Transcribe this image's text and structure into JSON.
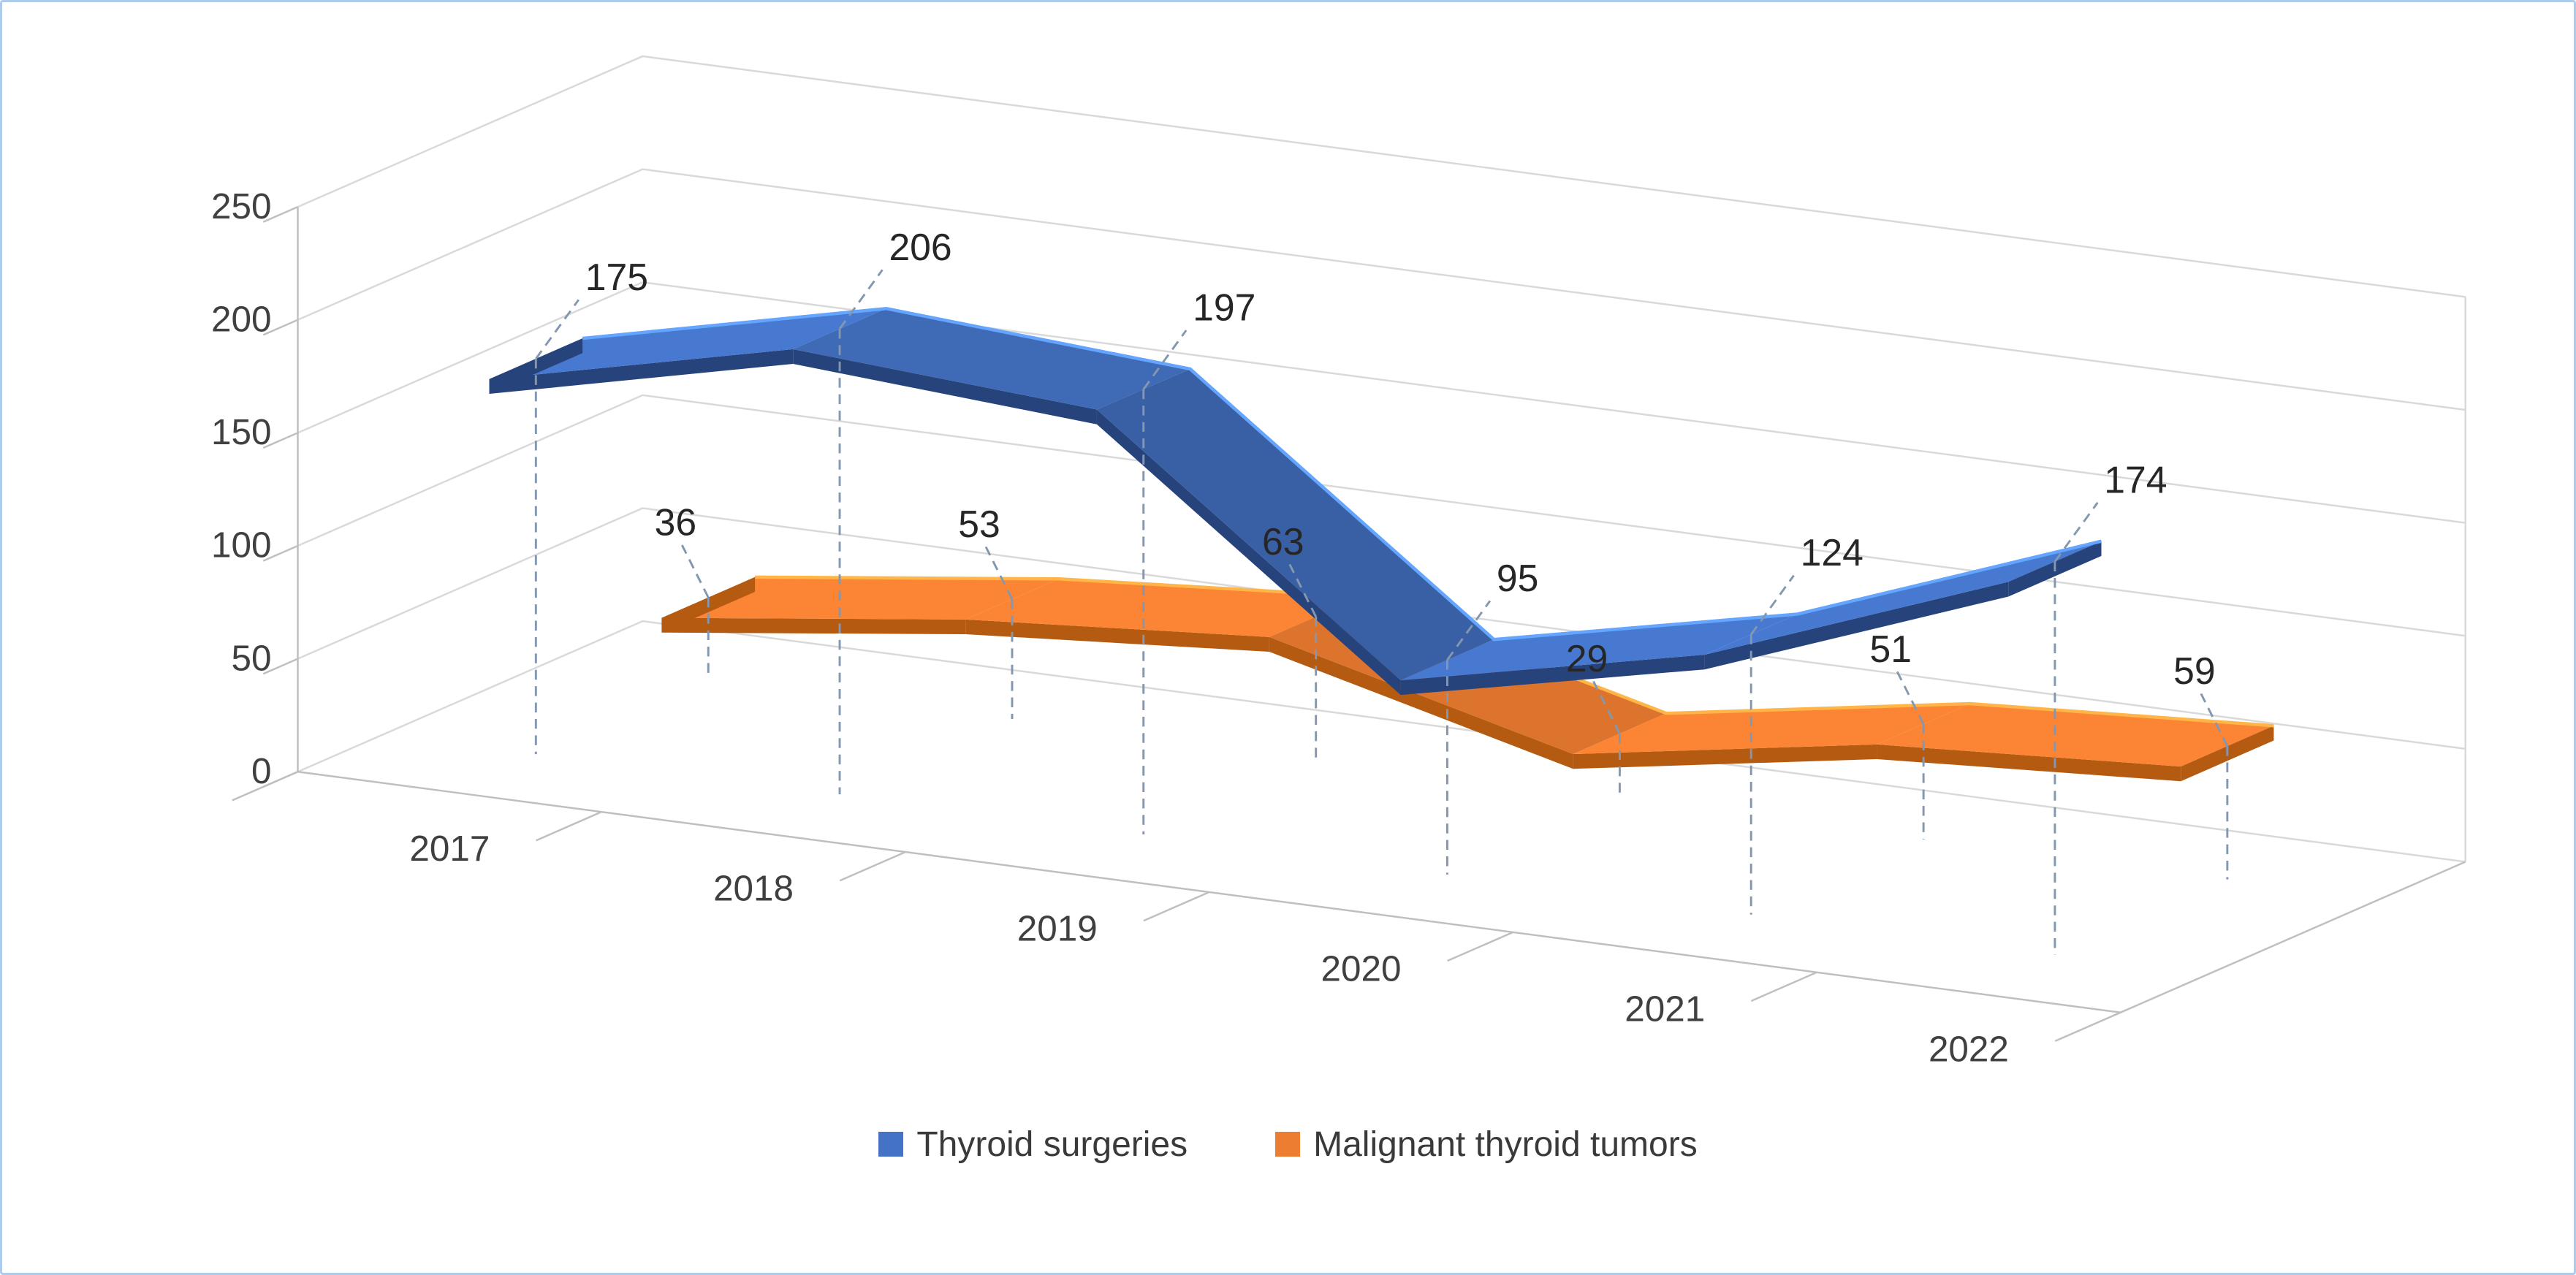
{
  "figure": {
    "border_color": "#AECBEB",
    "background": "#FFFFFF"
  },
  "chart_data": {
    "type": "line",
    "style": "3d-ribbon",
    "title": "",
    "xlabel": "",
    "ylabel": "",
    "categories": [
      "2017",
      "2018",
      "2019",
      "2020",
      "2021",
      "2022"
    ],
    "series": [
      {
        "name": "Thyroid surgeries",
        "color": "#4472C4",
        "edge_color": "#27437C",
        "values": [
          175,
          206,
          197,
          95,
          124,
          174
        ]
      },
      {
        "name": "Malignant thyroid tumors",
        "color": "#ED7D31",
        "edge_color": "#B55A11",
        "values": [
          36,
          53,
          63,
          29,
          51,
          59
        ]
      }
    ],
    "y_ticks": [
      0,
      50,
      100,
      150,
      200,
      250
    ],
    "ylim": [
      0,
      250
    ],
    "grid": true,
    "data_labels": true,
    "legend_position": "bottom",
    "gridline_color": "#D9D9D9",
    "axis_color": "#BFBFBF",
    "droplines_color": "#8497B0",
    "axis_label_color": "#404040",
    "data_label_color": "#262626"
  }
}
